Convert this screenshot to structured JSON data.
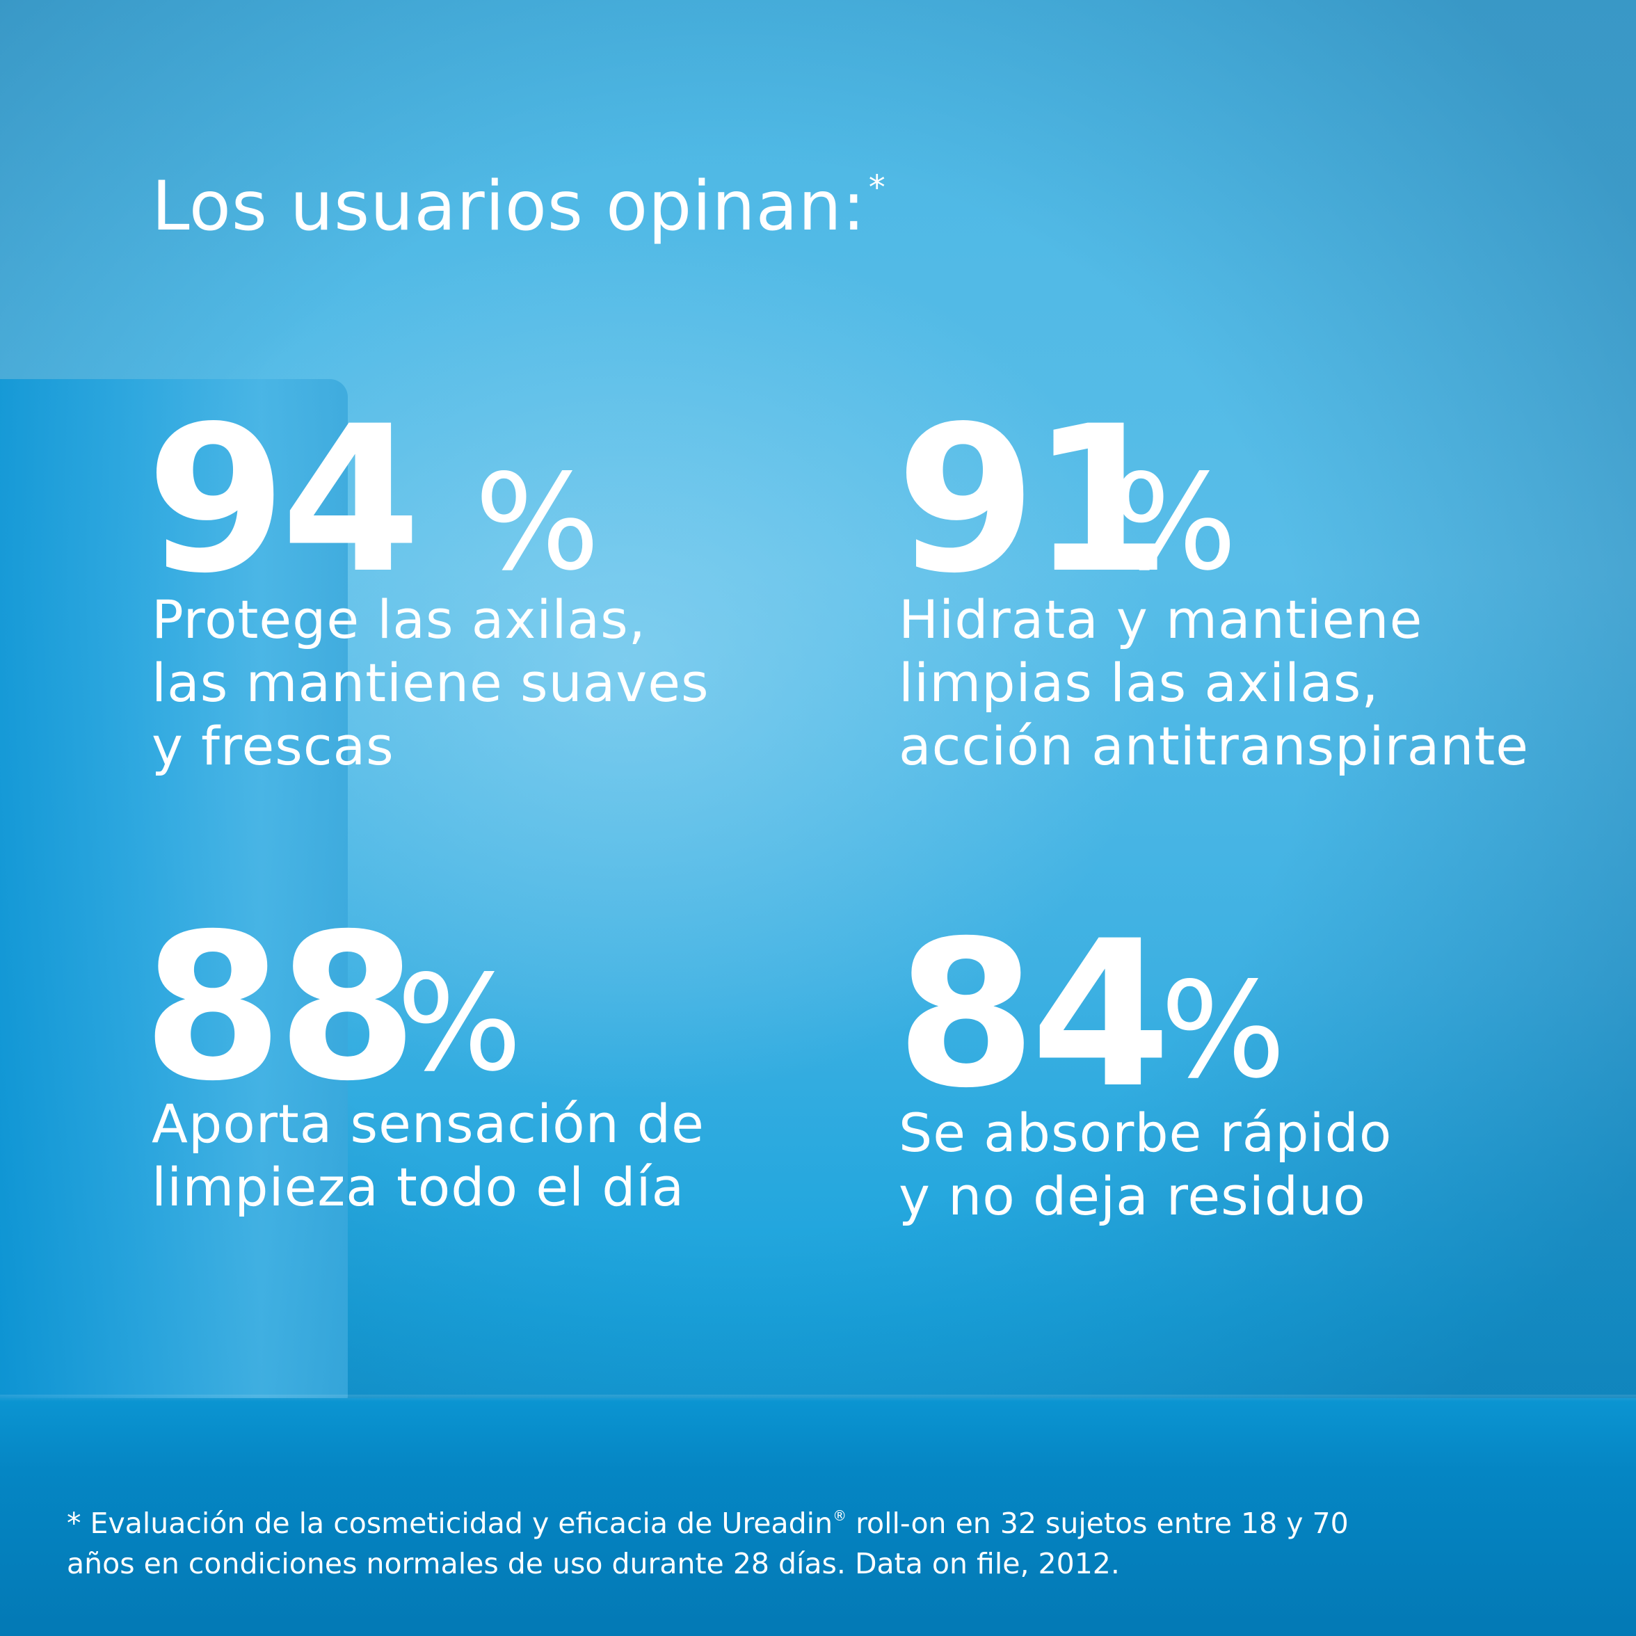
{
  "title": {
    "text": "Los usuarios opinan:",
    "marker": "*"
  },
  "stats": [
    {
      "value": "94",
      "unit": "%",
      "lines": [
        "Protege las axilas,",
        "las mantiene suaves",
        "y frescas"
      ]
    },
    {
      "value": "91",
      "unit": "%",
      "lines": [
        "Hidrata y mantiene",
        "limpias las axilas,",
        "acción antitranspirante"
      ]
    },
    {
      "value": "88",
      "unit": "%",
      "lines": [
        "Aporta sensación de",
        "limpieza todo el día"
      ]
    },
    {
      "value": "84",
      "unit": "%",
      "lines": [
        "Se absorbe rápido",
        "y no deja residuo"
      ]
    }
  ],
  "footnote": {
    "line1_pre": "* Evaluación de la cosmeticidad y eficacia de Ureadin",
    "registered": "®",
    "line1_post": " roll-on en 32 sujetos entre 18 y 70",
    "line2": "años en condiciones normales de uso durante 28 días. Data on file, 2012."
  },
  "colors": {
    "text": "#ffffff",
    "background_top": "#4cb7e4",
    "background_bottom": "#0379b5"
  }
}
